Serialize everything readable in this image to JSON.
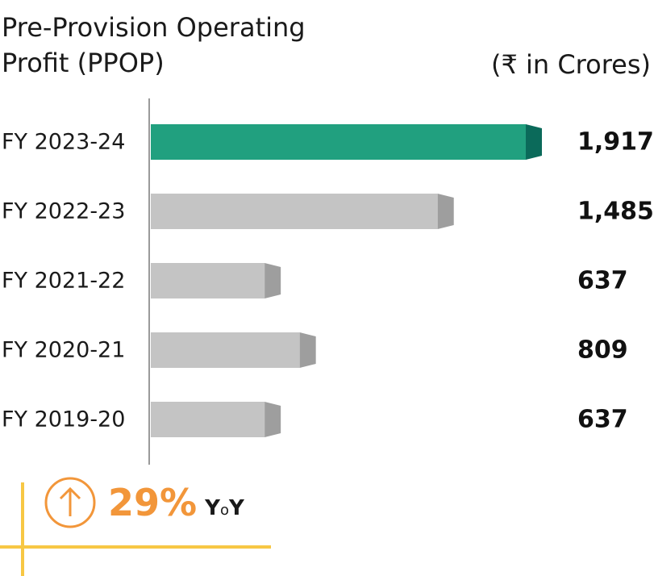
{
  "title": "Pre-Provision Operating\nProfit (PPOP)",
  "unit": "(₹ in Crores)",
  "growth": {
    "value": "29%",
    "label": "YoY"
  },
  "colors": {
    "highlight": "#21a07f",
    "highlight_cap": "#0b6a5a",
    "bar": "#c4c4c4",
    "bar_cap": "#9e9e9e",
    "axis": "#9a9a9a",
    "accent_orange": "#f2963a",
    "accent_yellow": "#f7c744"
  },
  "chart_data": {
    "type": "bar",
    "orientation": "horizontal",
    "categories": [
      "FY 2023-24",
      "FY 2022-23",
      "FY 2021-22",
      "FY 2020-21",
      "FY 2019-20"
    ],
    "values": [
      1917,
      1485,
      637,
      809,
      637
    ],
    "value_labels": [
      "1,917",
      "1,485",
      "637",
      "809",
      "637"
    ],
    "highlight_index": 0,
    "xlim": [
      0,
      1917
    ],
    "grid": false
  }
}
